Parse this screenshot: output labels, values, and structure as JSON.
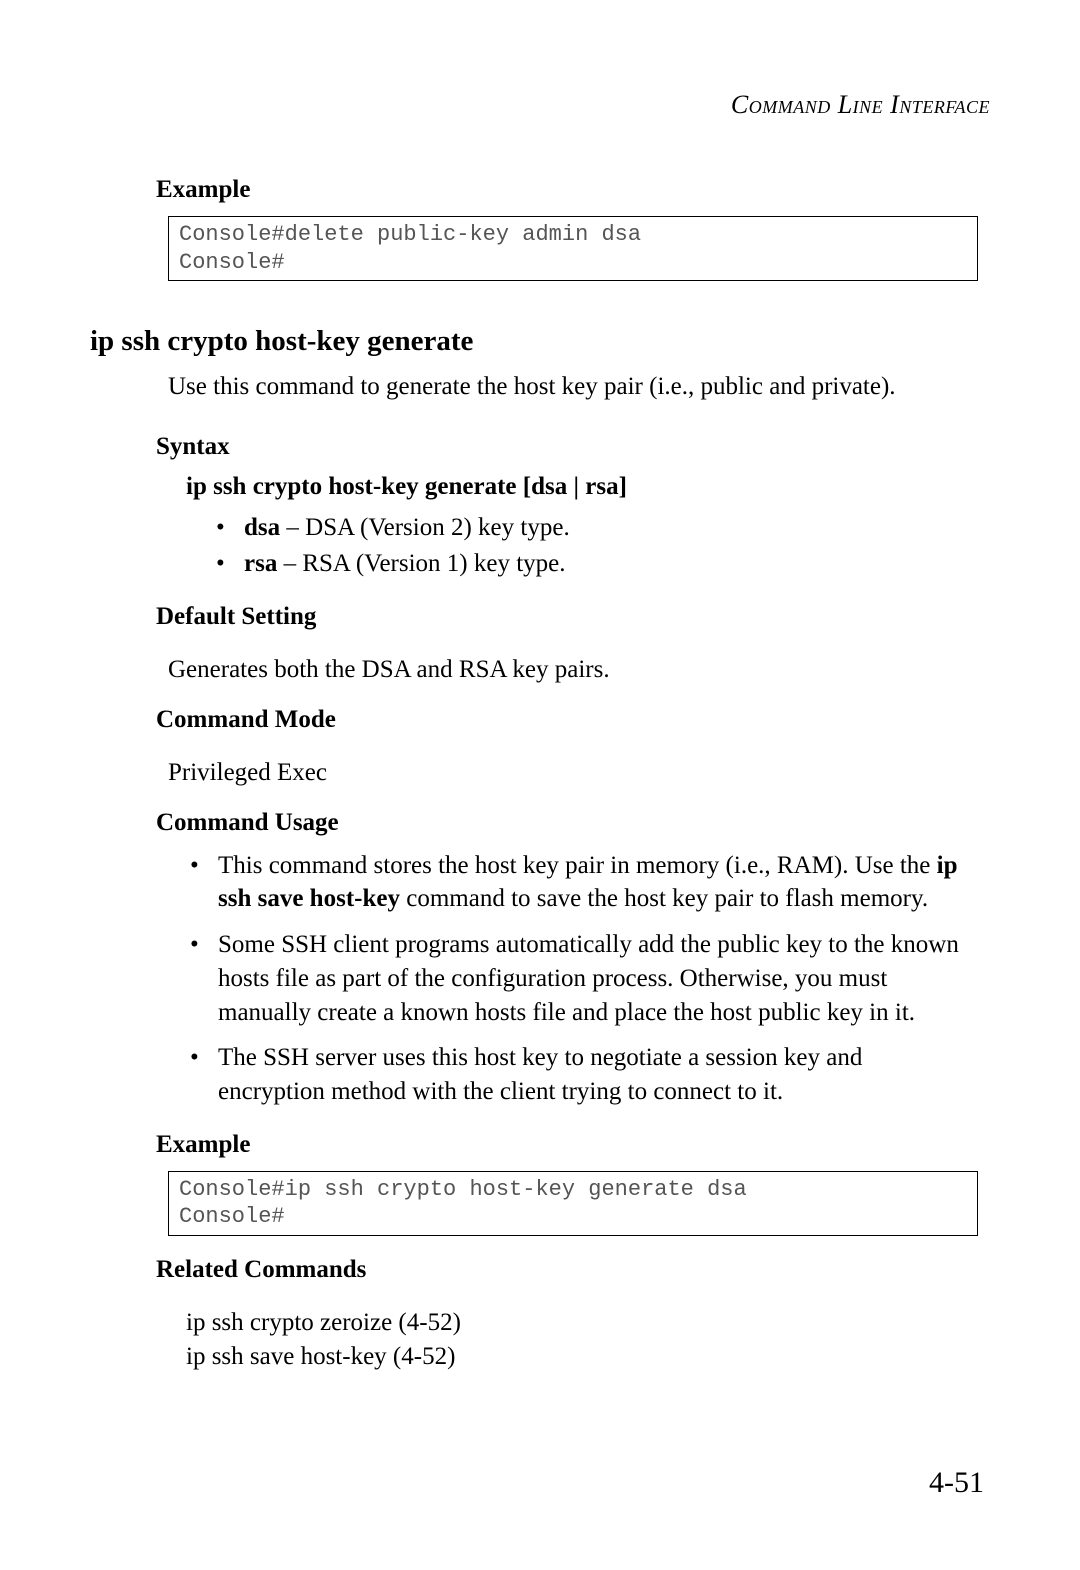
{
  "running_head": "Command Line Interface",
  "example1": {
    "heading": "Example",
    "code": "Console#delete public-key admin dsa\nConsole#"
  },
  "command": {
    "title": "ip ssh crypto host-key generate",
    "description": "Use this command to generate the host key pair (i.e., public and private).",
    "syntax": {
      "heading": "Syntax",
      "line": "ip ssh crypto host-key generate [dsa | rsa]",
      "params": [
        {
          "term": "dsa",
          "desc": " – DSA (Version 2) key type."
        },
        {
          "term": "rsa",
          "desc": " – RSA (Version 1) key type."
        }
      ]
    },
    "default_setting": {
      "heading": "Default Setting",
      "text": "Generates both the DSA and RSA key pairs."
    },
    "command_mode": {
      "heading": "Command Mode",
      "text": "Privileged Exec"
    },
    "command_usage": {
      "heading": "Command Usage",
      "items": [
        {
          "pre": "This command stores the host key pair in memory (i.e., RAM). Use the ",
          "bold": "ip ssh save host-key",
          "post": " command to save the host key pair to flash memory."
        },
        {
          "pre": "Some SSH client programs automatically add the public key to the known hosts file as part of the configuration process. Otherwise, you must manually create a known hosts file and place the host public key in it.",
          "bold": "",
          "post": ""
        },
        {
          "pre": "The SSH server uses this host key to negotiate a session key and encryption method with the client trying to connect to it.",
          "bold": "",
          "post": ""
        }
      ]
    },
    "example2": {
      "heading": "Example",
      "code": "Console#ip ssh crypto host-key generate dsa\nConsole#"
    },
    "related": {
      "heading": "Related Commands",
      "items": [
        "ip ssh crypto zeroize (4-52)",
        "ip ssh save host-key (4-52)"
      ]
    }
  },
  "page_number": "4-51",
  "style": {
    "font_body": "Garamond / Times-like serif",
    "font_code": "Courier New",
    "body_fontsize_pt": 18,
    "heading_fontsize_pt": 18,
    "title_fontsize_pt": 21,
    "code_fontsize_pt": 16,
    "text_color": "#000000",
    "code_text_color": "#555555",
    "code_border_color": "#000000",
    "background_color": "#ffffff"
  }
}
